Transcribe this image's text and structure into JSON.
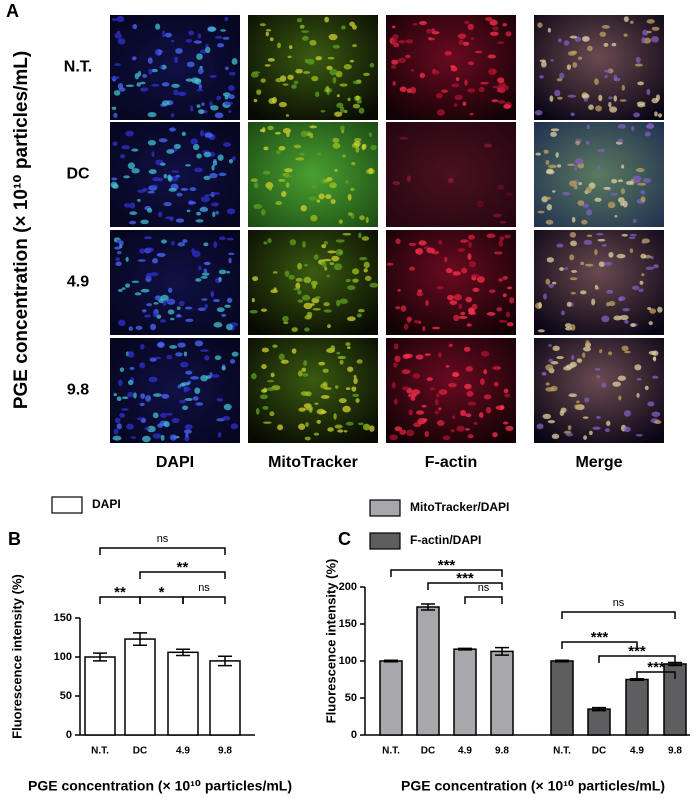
{
  "panel_a": {
    "label": "A",
    "y_label": "PGE concentration (× 10¹⁰ particles/mL)",
    "rows": [
      "N.T.",
      "DC",
      "4.9",
      "9.8"
    ],
    "columns": [
      "DAPI",
      "MitoTracker",
      "F-actin",
      "Merge"
    ]
  },
  "chart_data": [
    {
      "type": "bar",
      "panel": "B",
      "categories": [
        "N.T.",
        "DC",
        "4.9",
        "9.8"
      ],
      "series": [
        {
          "name": "DAPI",
          "color": "#ffffff",
          "values": [
            100,
            123,
            106,
            95
          ],
          "errors": [
            5,
            8,
            4,
            6
          ]
        }
      ],
      "ylabel": "Fluorescence intensity (%)",
      "xlabel": "PGE concentration (× 10¹⁰ particles/mL)",
      "ylim": [
        0,
        150
      ],
      "yticks": [
        0,
        50,
        100,
        150
      ],
      "comparisons": [
        {
          "series": "DAPI",
          "from": "N.T.",
          "to": "9.8",
          "label": "ns"
        },
        {
          "series": "DAPI",
          "from": "DC",
          "to": "9.8",
          "label": "**"
        },
        {
          "series": "DAPI",
          "from": "N.T.",
          "to": "DC",
          "label": "**"
        },
        {
          "series": "DAPI",
          "from": "DC",
          "to": "4.9",
          "label": "*"
        },
        {
          "series": "DAPI",
          "from": "4.9",
          "to": "9.8",
          "label": "ns"
        }
      ]
    },
    {
      "type": "bar",
      "panel": "C",
      "categories": [
        "N.T.",
        "DC",
        "4.9",
        "9.8"
      ],
      "series": [
        {
          "name": "MitoTracker/DAPI",
          "color": "#a8a8ac",
          "values": [
            100,
            173,
            116,
            113
          ],
          "errors": [
            1,
            4,
            1,
            5
          ]
        },
        {
          "name": "F-actin/DAPI",
          "color": "#5e5e61",
          "values": [
            100,
            35,
            75,
            96
          ],
          "errors": [
            1,
            2,
            1,
            2
          ]
        }
      ],
      "ylabel": "Fluorescence intensity (%)",
      "xlabel": "PGE concentration (× 10¹⁰ particles/mL)",
      "ylim": [
        0,
        200
      ],
      "yticks": [
        0,
        50,
        100,
        150,
        200
      ],
      "comparisons": [
        {
          "series": "MitoTracker/DAPI",
          "from": "N.T.",
          "to": "9.8",
          "label": "***"
        },
        {
          "series": "MitoTracker/DAPI",
          "from": "DC",
          "to": "9.8",
          "label": "***"
        },
        {
          "series": "MitoTracker/DAPI",
          "from": "4.9",
          "to": "9.8",
          "label": "ns"
        },
        {
          "series": "F-actin/DAPI",
          "from": "N.T.",
          "to": "9.8",
          "label": "ns"
        },
        {
          "series": "F-actin/DAPI",
          "from": "N.T.",
          "to": "4.9",
          "label": "***"
        },
        {
          "series": "F-actin/DAPI",
          "from": "DC",
          "to": "9.8",
          "label": "***"
        },
        {
          "series": "F-actin/DAPI",
          "from": "4.9",
          "to": "9.8",
          "label": "***"
        }
      ]
    }
  ]
}
